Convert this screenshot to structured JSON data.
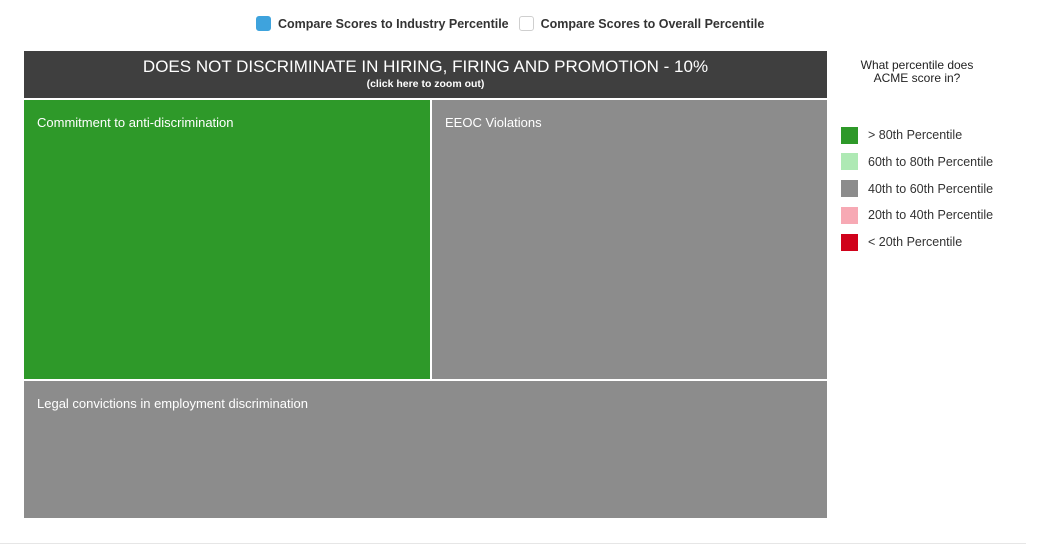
{
  "compare_toggles": {
    "industry_label": "Compare Scores to Industry Percentile",
    "overall_label": "Compare Scores to Overall Percentile",
    "selected": "industry",
    "active_color": "#3ea3dd"
  },
  "treemap": {
    "title": "DOES NOT DISCRIMINATE IN HIRING, FIRING AND PROMOTION - 10%",
    "subtitle": "(click here to zoom out)",
    "header_color": "#3f3f3f",
    "tiles": [
      {
        "label": "Commitment to anti-discrimination",
        "category": "> 80th Percentile",
        "color": "#2e9929"
      },
      {
        "label": "EEOC Violations",
        "category": "40th to 60th Percentile",
        "color": "#8c8c8c"
      },
      {
        "label": "Legal convictions in employment discrimination",
        "category": "40th to 60th Percentile",
        "color": "#8c8c8c"
      }
    ]
  },
  "legend": {
    "title": "What percentile does ACME score in?",
    "items": [
      {
        "label": "> 80th Percentile",
        "color": "#2e9929"
      },
      {
        "label": "60th to 80th Percentile",
        "color": "#aee9b4"
      },
      {
        "label": "40th to 60th Percentile",
        "color": "#8c8c8c"
      },
      {
        "label": "20th to 40th Percentile",
        "color": "#f7a9b4"
      },
      {
        "label": "< 20th Percentile",
        "color": "#d0021b"
      }
    ]
  }
}
